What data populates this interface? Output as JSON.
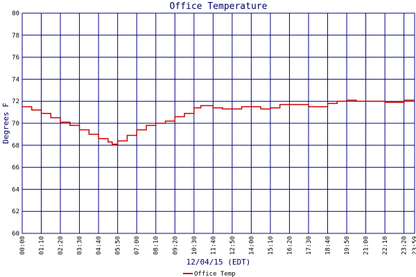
{
  "chart_data": {
    "type": "line",
    "title": "Office Temperature",
    "x_label": "12/04/15 (EDT)",
    "y_label": "Degrees F",
    "xlim": [
      0,
      1439
    ],
    "ylim": [
      60,
      80
    ],
    "xticks": [
      {
        "value": 0,
        "label": "00:00"
      },
      {
        "value": 70,
        "label": "01:10"
      },
      {
        "value": 140,
        "label": "02:20"
      },
      {
        "value": 210,
        "label": "03:30"
      },
      {
        "value": 280,
        "label": "04:40"
      },
      {
        "value": 350,
        "label": "05:50"
      },
      {
        "value": 420,
        "label": "07:00"
      },
      {
        "value": 490,
        "label": "08:10"
      },
      {
        "value": 560,
        "label": "09:20"
      },
      {
        "value": 630,
        "label": "10:30"
      },
      {
        "value": 700,
        "label": "11:40"
      },
      {
        "value": 770,
        "label": "12:50"
      },
      {
        "value": 840,
        "label": "14:00"
      },
      {
        "value": 910,
        "label": "15:10"
      },
      {
        "value": 980,
        "label": "16:20"
      },
      {
        "value": 1050,
        "label": "17:30"
      },
      {
        "value": 1120,
        "label": "18:40"
      },
      {
        "value": 1190,
        "label": "19:50"
      },
      {
        "value": 1260,
        "label": "21:00"
      },
      {
        "value": 1330,
        "label": "22:10"
      },
      {
        "value": 1400,
        "label": "23:20"
      },
      {
        "value": 1439,
        "label": "23:59"
      }
    ],
    "yticks": [
      60,
      62,
      64,
      66,
      68,
      70,
      72,
      74,
      76,
      78,
      80
    ],
    "grid": true,
    "step": true,
    "legend": "bottom-left",
    "x": [
      0,
      35,
      70,
      105,
      140,
      175,
      210,
      245,
      280,
      315,
      330,
      350,
      385,
      420,
      455,
      490,
      525,
      560,
      595,
      630,
      655,
      700,
      735,
      770,
      805,
      840,
      875,
      910,
      945,
      980,
      1015,
      1050,
      1085,
      1120,
      1155,
      1190,
      1225,
      1260,
      1295,
      1330,
      1365,
      1400,
      1439
    ],
    "series": [
      {
        "name": "Office Temp",
        "color": "#cc0000",
        "values": [
          71.5,
          71.2,
          70.9,
          70.5,
          70.1,
          69.8,
          69.4,
          69.0,
          68.6,
          68.3,
          68.1,
          68.4,
          68.9,
          69.4,
          69.8,
          70.0,
          70.2,
          70.6,
          70.9,
          71.4,
          71.6,
          71.4,
          71.3,
          71.3,
          71.5,
          71.5,
          71.3,
          71.4,
          71.7,
          71.7,
          71.7,
          71.5,
          71.5,
          71.8,
          72.0,
          72.1,
          72.0,
          72.0,
          72.0,
          71.9,
          71.9,
          72.1,
          72.1
        ]
      }
    ]
  }
}
